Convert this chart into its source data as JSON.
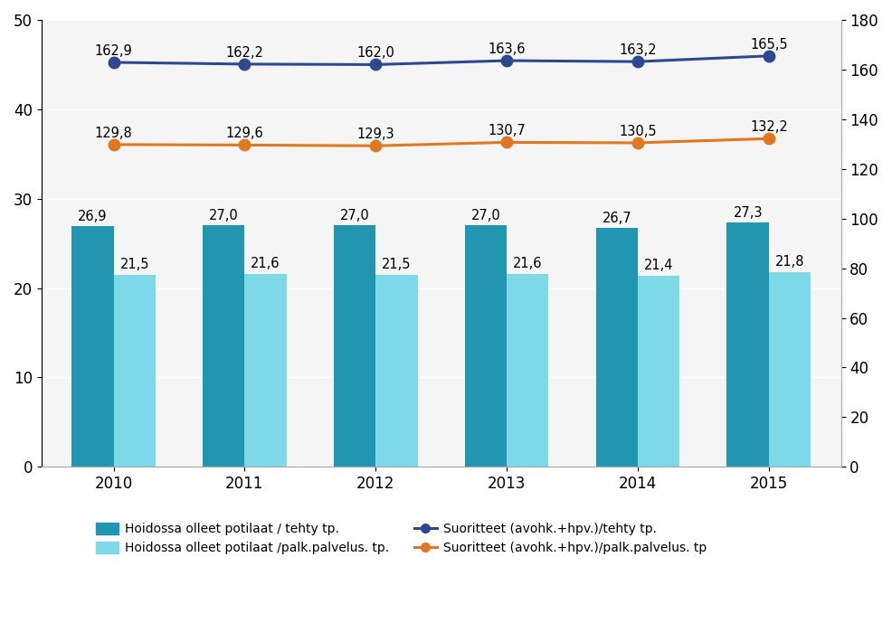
{
  "years": [
    2010,
    2011,
    2012,
    2013,
    2014,
    2015
  ],
  "bar1_values": [
    26.9,
    27.0,
    27.0,
    27.0,
    26.7,
    27.3
  ],
  "bar2_values": [
    21.5,
    21.6,
    21.5,
    21.6,
    21.4,
    21.8
  ],
  "line1_values": [
    162.9,
    162.2,
    162.0,
    163.6,
    163.2,
    165.5
  ],
  "line2_values": [
    129.8,
    129.6,
    129.3,
    130.7,
    130.5,
    132.2
  ],
  "bar1_color": "#2196b0",
  "bar2_color": "#7dd8e8",
  "line1_color": "#2e4890",
  "line2_color": "#e07820",
  "bar1_label": "Hoidossa olleet potilaat / tehty tp.",
  "bar2_label": "Hoidossa olleet potilaat /palk.palvelus. tp.",
  "line1_label": "Suoritteet (avohk.+hpv.)/tehty tp.",
  "line2_label": "Suoritteet (avohk.+hpv.)/palk.palvelus. tp",
  "left_ylim": [
    0,
    50
  ],
  "right_ylim": [
    0,
    180
  ],
  "left_yticks": [
    0,
    10,
    20,
    30,
    40,
    50
  ],
  "right_yticks": [
    0,
    20,
    40,
    60,
    80,
    100,
    120,
    140,
    160,
    180
  ],
  "bar_width": 0.32,
  "figsize": [
    9.86,
    7.1
  ],
  "dpi": 100,
  "bg_color": "#ffffff",
  "plot_bg_color": "#f5f5f5",
  "grid_color": "#ffffff",
  "tick_fontsize": 12,
  "annotation_fontsize": 10.5,
  "legend_fontsize": 10,
  "marker": "o",
  "marker_size": 9,
  "line_width": 2.2
}
